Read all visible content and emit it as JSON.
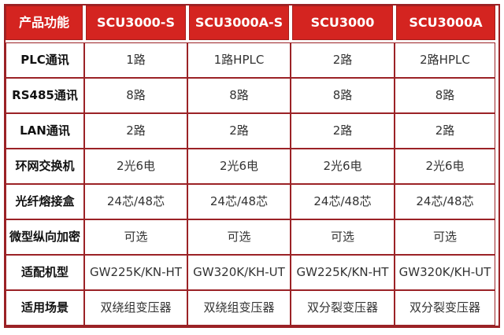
{
  "colors": {
    "header_bg": "#d42420",
    "header_text": "#ffffff",
    "grid_border": "#9b2226",
    "label_text": "#111111",
    "cell_text": "#333333",
    "page_bg": "#ffffff"
  },
  "chart_data": {
    "type": "table",
    "columns": [
      "产品功能",
      "SCU3000-S",
      "SCU3000A-S",
      "SCU3000",
      "SCU3000A"
    ],
    "rows": [
      {
        "label": "PLC通讯",
        "values": [
          "1路",
          "1路HPLC",
          "2路",
          "2路HPLC"
        ]
      },
      {
        "label": "RS485通讯",
        "values": [
          "8路",
          "8路",
          "8路",
          "8路"
        ]
      },
      {
        "label": "LAN通讯",
        "values": [
          "2路",
          "2路",
          "2路",
          "2路"
        ]
      },
      {
        "label": "环网交换机",
        "values": [
          "2光6电",
          "2光6电",
          "2光6电",
          "2光6电"
        ]
      },
      {
        "label": "光纤熔接盒",
        "values": [
          "24芯/48芯",
          "24芯/48芯",
          "24芯/48芯",
          "24芯/48芯"
        ]
      },
      {
        "label": "微型纵向加密",
        "values": [
          "可选",
          "可选",
          "可选",
          "可选"
        ]
      },
      {
        "label": "适配机型",
        "values": [
          "GW225K/KN-HT",
          "GW320K/KH-UT",
          "GW225K/KN-HT",
          "GW320K/KH-UT"
        ]
      },
      {
        "label": "适用场景",
        "values": [
          "双绕组变压器",
          "双绕组变压器",
          "双分裂变压器",
          "双分裂变压器"
        ]
      }
    ]
  }
}
